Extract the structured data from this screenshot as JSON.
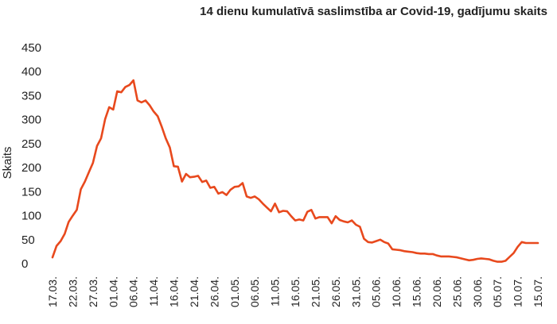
{
  "chart_data": {
    "type": "line",
    "title": "14 dienu kumulatīvā saslimstība ar Covid-19, gadījumu skaits",
    "xlabel": "",
    "ylabel": "Skaits",
    "ylim": [
      0,
      450
    ],
    "yticks": [
      "0",
      "50",
      "100",
      "150",
      "200",
      "250",
      "300",
      "350",
      "400",
      "450"
    ],
    "grid": false,
    "line_color": "#e8491d",
    "x_tick_labels": [
      "17.03.",
      "22.03.",
      "27.03.",
      "01.04.",
      "06.04.",
      "11.04.",
      "16.04.",
      "21.04.",
      "26.04.",
      "01.05.",
      "06.05.",
      "11.05.",
      "16.05.",
      "21.05.",
      "26.05.",
      "31.05.",
      "05.06.",
      "10.06.",
      "15.06.",
      "20.06.",
      "25.06.",
      "30.06.",
      "05.07.",
      "10.07.",
      "15.07."
    ],
    "series": [
      {
        "x_start": "17.03.",
        "values": [
          13,
          37,
          47,
          62,
          87,
          100,
          112,
          155,
          171,
          191,
          210,
          245,
          261,
          301,
          326,
          321,
          359,
          357,
          368,
          372,
          382,
          340,
          336,
          340,
          330,
          317,
          307,
          285,
          261,
          242,
          203,
          202,
          171,
          187,
          180,
          181,
          183,
          170,
          173,
          158,
          160,
          146,
          149,
          143,
          154,
          160,
          161,
          168,
          140,
          137,
          140,
          134,
          125,
          117,
          109,
          125,
          107,
          110,
          109,
          99,
          90,
          92,
          90,
          108,
          112,
          94,
          97,
          97,
          97,
          84,
          99,
          91,
          88,
          86,
          90,
          81,
          77,
          52,
          45,
          44,
          47,
          50,
          45,
          42,
          30,
          29,
          28,
          26,
          25,
          24,
          22,
          21,
          21,
          20,
          20,
          17,
          15,
          15,
          15,
          14,
          13,
          11,
          9,
          7,
          8,
          10,
          11,
          10,
          9,
          6,
          4,
          4,
          6,
          14,
          22,
          35,
          45,
          43,
          43,
          43,
          43
        ]
      }
    ]
  }
}
